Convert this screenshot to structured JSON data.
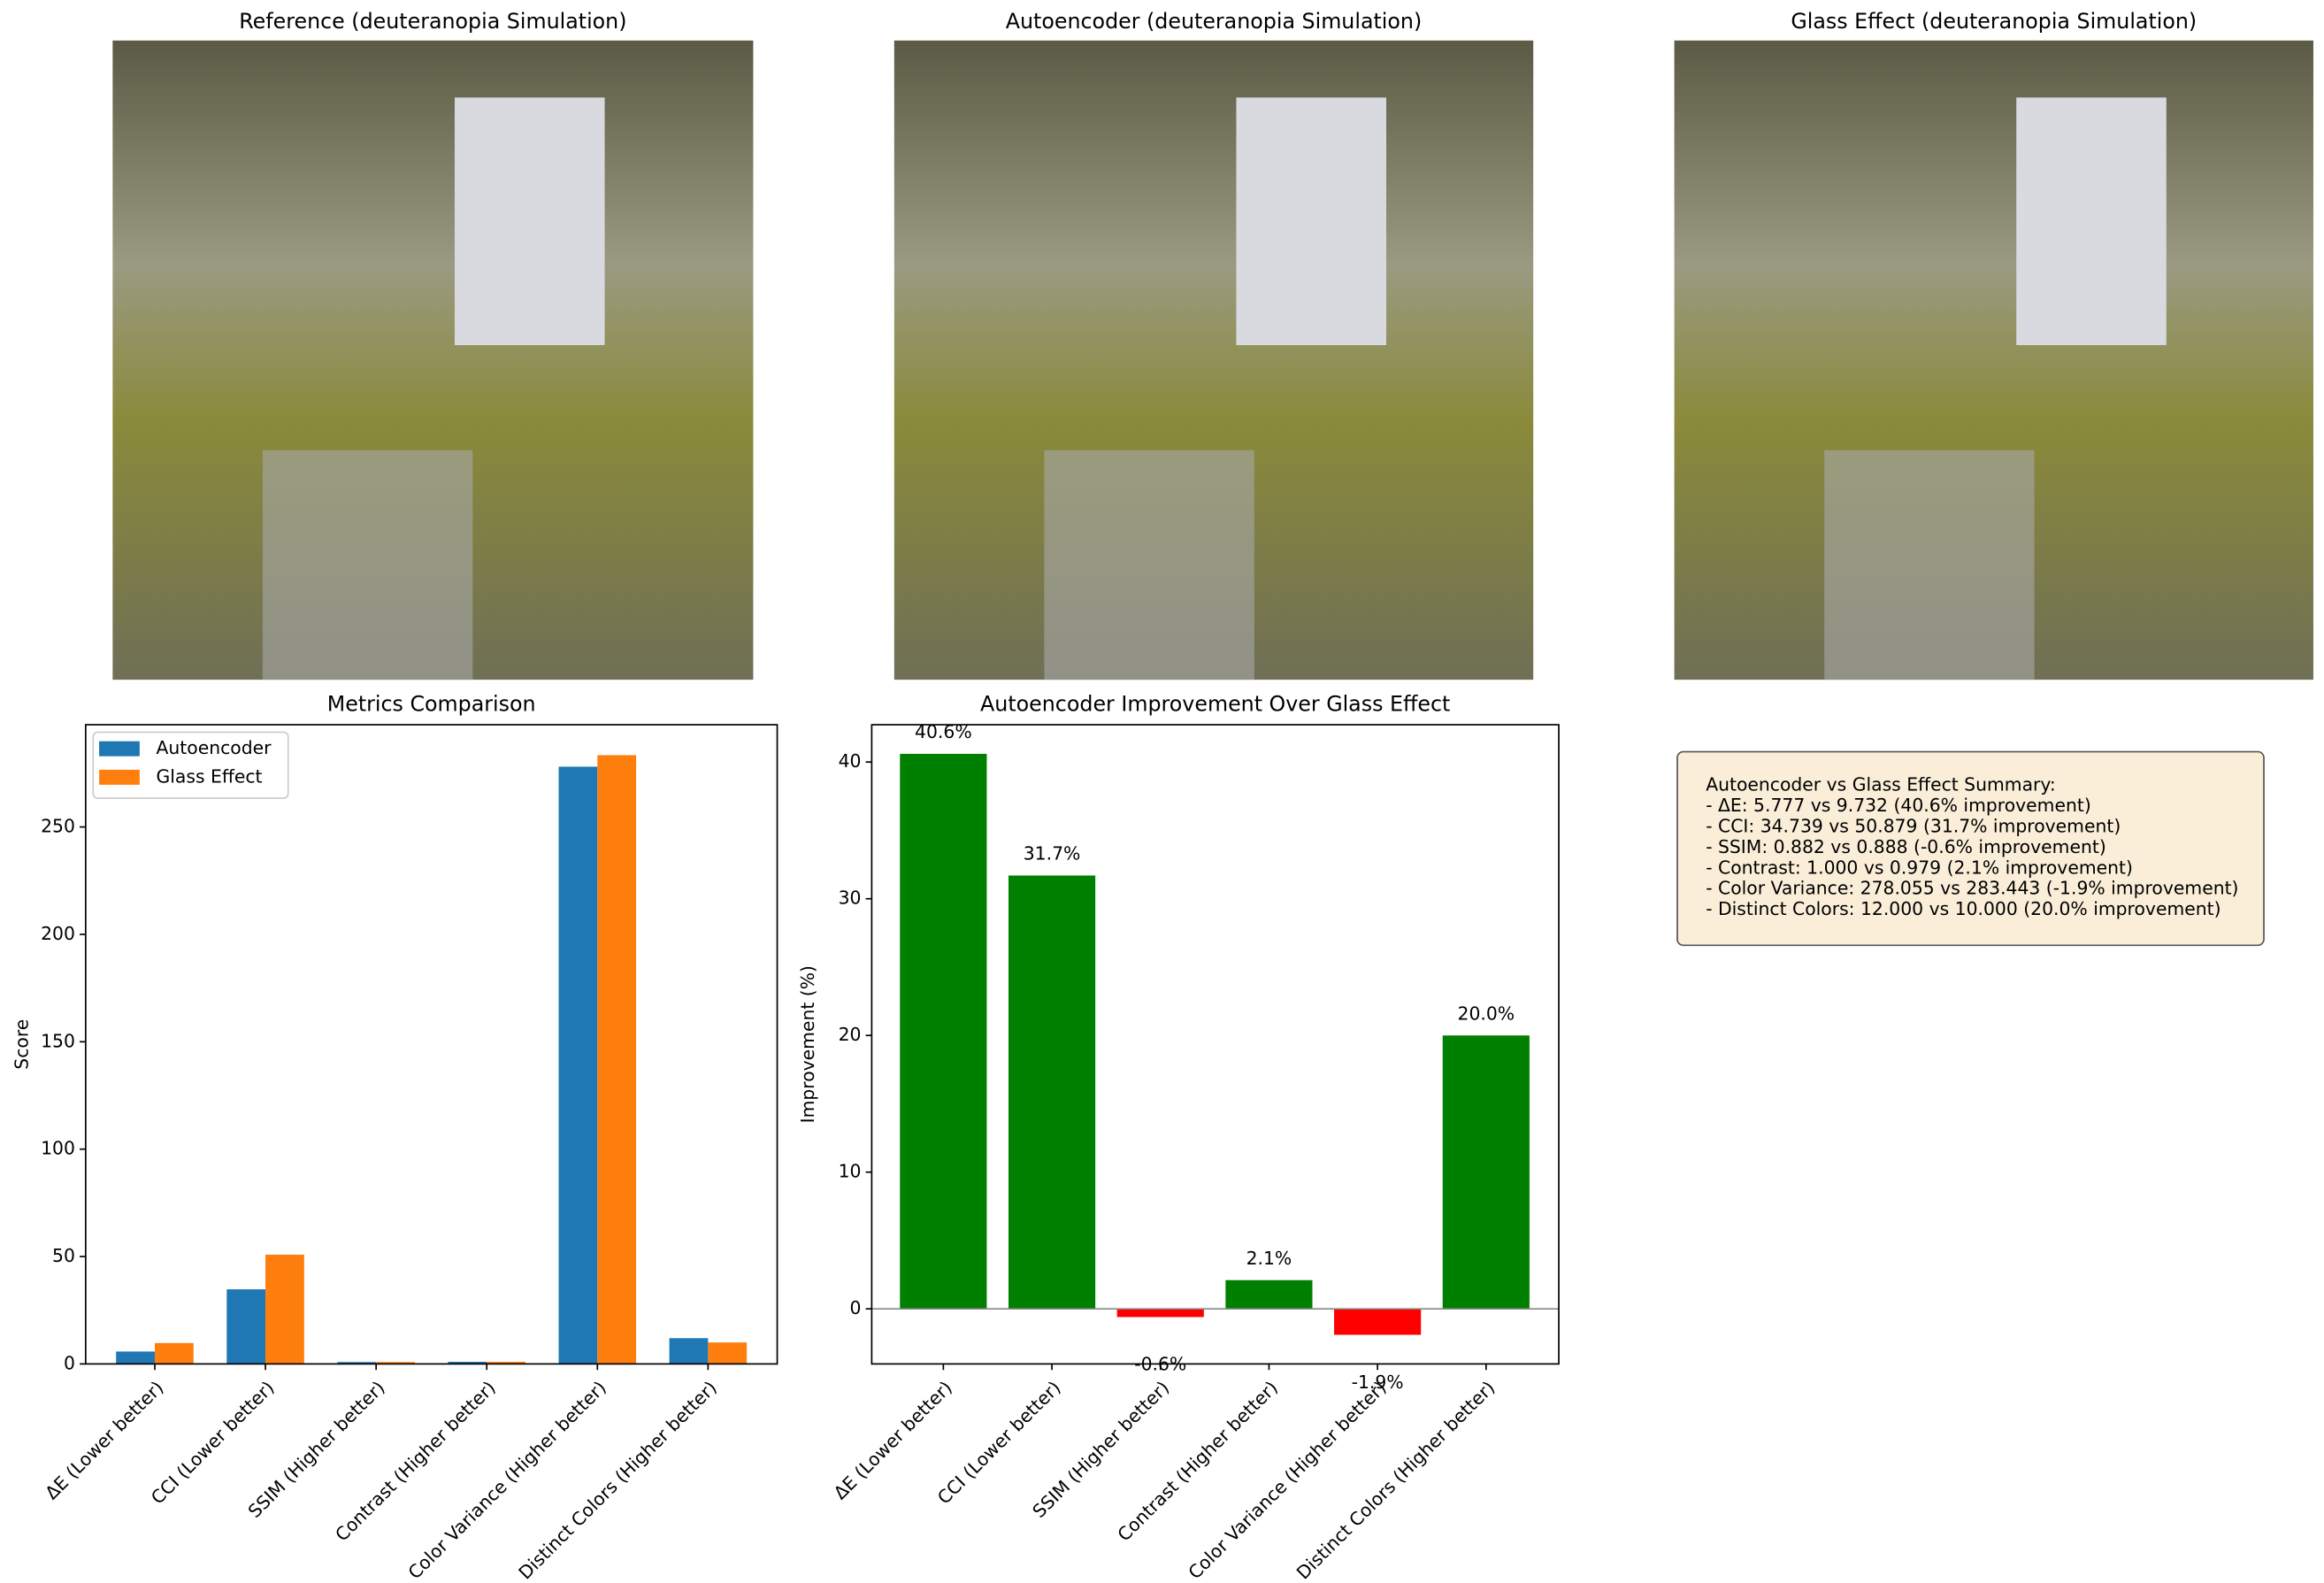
{
  "chart_data": [
    {
      "type": "image",
      "title": "Reference (deuteranopia Simulation)"
    },
    {
      "type": "image",
      "title": "Autoencoder (deuteranopia Simulation)"
    },
    {
      "type": "image",
      "title": "Glass Effect (deuteranopia Simulation)"
    },
    {
      "type": "grouped_bar",
      "title": "Metrics Comparison",
      "ylabel": "Score",
      "categories": [
        "ΔE (Lower better)",
        "CCI (Lower better)",
        "SSIM (Higher better)",
        "Contrast (Higher better)",
        "Color Variance (Higher better)",
        "Distinct Colors (Higher better)"
      ],
      "series": [
        {
          "name": "Autoencoder",
          "color": "#1f77b4",
          "values": [
            5.777,
            34.739,
            0.882,
            1.0,
            278.055,
            12.0
          ]
        },
        {
          "name": "Glass Effect",
          "color": "#ff7f0e",
          "values": [
            9.732,
            50.879,
            0.888,
            0.979,
            283.443,
            10.0
          ]
        }
      ],
      "ylim": [
        0,
        297.6
      ],
      "yticks": [
        0,
        50,
        100,
        150,
        200,
        250
      ],
      "legend": "upper left"
    },
    {
      "type": "bar",
      "title": "Autoencoder Improvement Over Glass Effect",
      "ylabel": "Improvement (%)",
      "categories": [
        "ΔE (Lower better)",
        "CCI (Lower better)",
        "SSIM (Higher better)",
        "Contrast (Higher better)",
        "Color Variance (Higher better)",
        "Distinct Colors (Higher better)"
      ],
      "values": [
        40.6,
        31.7,
        -0.6,
        2.1,
        -1.9,
        20.0
      ],
      "value_labels": [
        "40.6%",
        "31.7%",
        "-0.6%",
        "2.1%",
        "-1.9%",
        "20.0%"
      ],
      "positive_color": "green",
      "negative_color": "red",
      "ylim": [
        -4.03,
        42.73
      ],
      "yticks": [
        0,
        10,
        20,
        30,
        40
      ]
    },
    {
      "type": "text",
      "lines": [
        "Autoencoder vs Glass Effect Summary:",
        "- ΔE: 5.777 vs 9.732 (40.6% improvement)",
        "- CCI: 34.739 vs 50.879 (31.7% improvement)",
        "- SSIM: 0.882 vs 0.888 (-0.6% improvement)",
        "- Contrast: 1.000 vs 0.979 (2.1% improvement)",
        "- Color Variance: 278.055 vs 283.443 (-1.9% improvement)",
        "- Distinct Colors: 12.000 vs 10.000 (20.0% improvement)"
      ]
    }
  ]
}
